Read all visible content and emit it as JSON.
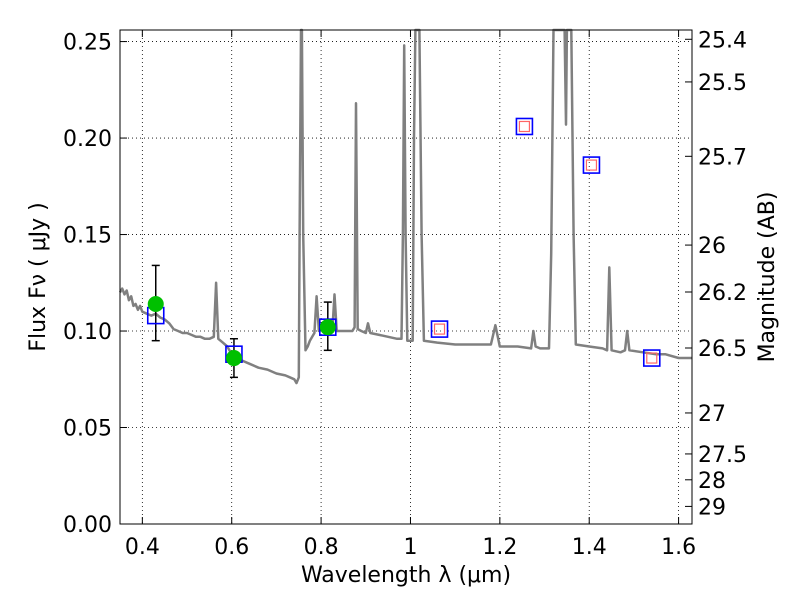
{
  "chart_data": {
    "type": "line",
    "xlabel": "Wavelength  λ (μm)",
    "ylabel": "Flux  Fν  ( μJy )",
    "y2label": "Magnitude (AB)",
    "xlim": [
      0.35,
      1.63
    ],
    "ylim": [
      0.0,
      0.256
    ],
    "grid": true,
    "x_ticks": [
      {
        "value": 0.4,
        "label": "0.4"
      },
      {
        "value": 0.6,
        "label": "0.6"
      },
      {
        "value": 0.8,
        "label": "0.8"
      },
      {
        "value": 1.0,
        "label": "1"
      },
      {
        "value": 1.2,
        "label": "1.2"
      },
      {
        "value": 1.4,
        "label": "1.4"
      },
      {
        "value": 1.6,
        "label": "1.6"
      }
    ],
    "y_ticks": [
      {
        "value": 0.0,
        "label": "0.00"
      },
      {
        "value": 0.05,
        "label": "0.05"
      },
      {
        "value": 0.1,
        "label": "0.10"
      },
      {
        "value": 0.15,
        "label": "0.15"
      },
      {
        "value": 0.2,
        "label": "0.20"
      },
      {
        "value": 0.25,
        "label": "0.25"
      }
    ],
    "y2_ticks": [
      {
        "value": 25.4,
        "label": "25.4"
      },
      {
        "value": 25.5,
        "label": "25.5"
      },
      {
        "value": 25.7,
        "label": "25.7"
      },
      {
        "value": 26.0,
        "label": "26"
      },
      {
        "value": 26.2,
        "label": "26.2"
      },
      {
        "value": 26.5,
        "label": "26.5"
      },
      {
        "value": 27.0,
        "label": "27"
      },
      {
        "value": 27.5,
        "label": "27.5"
      },
      {
        "value": 28.0,
        "label": "28"
      },
      {
        "value": 29.0,
        "label": "29"
      }
    ],
    "model_spectrum": {
      "color": "#808080",
      "points": [
        [
          0.35,
          0.12
        ],
        [
          0.355,
          0.122
        ],
        [
          0.36,
          0.119
        ],
        [
          0.365,
          0.121
        ],
        [
          0.37,
          0.116
        ],
        [
          0.375,
          0.118
        ],
        [
          0.38,
          0.113
        ],
        [
          0.385,
          0.114
        ],
        [
          0.39,
          0.111
        ],
        [
          0.395,
          0.113
        ],
        [
          0.4,
          0.11
        ],
        [
          0.41,
          0.109
        ],
        [
          0.42,
          0.108
        ],
        [
          0.43,
          0.109
        ],
        [
          0.44,
          0.107
        ],
        [
          0.45,
          0.106
        ],
        [
          0.46,
          0.104
        ],
        [
          0.47,
          0.101
        ],
        [
          0.48,
          0.1
        ],
        [
          0.49,
          0.099
        ],
        [
          0.5,
          0.099
        ],
        [
          0.51,
          0.098
        ],
        [
          0.52,
          0.097
        ],
        [
          0.53,
          0.097
        ],
        [
          0.54,
          0.096
        ],
        [
          0.55,
          0.096
        ],
        [
          0.56,
          0.097
        ],
        [
          0.565,
          0.125
        ],
        [
          0.57,
          0.096
        ],
        [
          0.58,
          0.094
        ],
        [
          0.59,
          0.092
        ],
        [
          0.6,
          0.088
        ],
        [
          0.62,
          0.085
        ],
        [
          0.64,
          0.083
        ],
        [
          0.66,
          0.081
        ],
        [
          0.68,
          0.08
        ],
        [
          0.7,
          0.078
        ],
        [
          0.72,
          0.077
        ],
        [
          0.73,
          0.076
        ],
        [
          0.74,
          0.075
        ],
        [
          0.745,
          0.073
        ],
        [
          0.75,
          0.076
        ],
        [
          0.752,
          0.15
        ],
        [
          0.755,
          0.256
        ],
        [
          0.757,
          0.256
        ],
        [
          0.76,
          0.15
        ],
        [
          0.765,
          0.09
        ],
        [
          0.77,
          0.092
        ],
        [
          0.775,
          0.095
        ],
        [
          0.78,
          0.097
        ],
        [
          0.785,
          0.099
        ],
        [
          0.79,
          0.118
        ],
        [
          0.795,
          0.1
        ],
        [
          0.8,
          0.102
        ],
        [
          0.81,
          0.101
        ],
        [
          0.82,
          0.101
        ],
        [
          0.825,
          0.1
        ],
        [
          0.83,
          0.119
        ],
        [
          0.835,
          0.1
        ],
        [
          0.84,
          0.1
        ],
        [
          0.85,
          0.1
        ],
        [
          0.86,
          0.1
        ],
        [
          0.87,
          0.1
        ],
        [
          0.875,
          0.102
        ],
        [
          0.878,
          0.218
        ],
        [
          0.882,
          0.101
        ],
        [
          0.89,
          0.1
        ],
        [
          0.9,
          0.099
        ],
        [
          0.905,
          0.104
        ],
        [
          0.91,
          0.099
        ],
        [
          0.93,
          0.098
        ],
        [
          0.95,
          0.097
        ],
        [
          0.97,
          0.096
        ],
        [
          0.98,
          0.096
        ],
        [
          0.983,
          0.15
        ],
        [
          0.986,
          0.248
        ],
        [
          0.989,
          0.15
        ],
        [
          0.993,
          0.095
        ],
        [
          1.0,
          0.095
        ],
        [
          1.005,
          0.095
        ],
        [
          1.008,
          0.2
        ],
        [
          1.011,
          0.256
        ],
        [
          1.02,
          0.256
        ],
        [
          1.025,
          0.15
        ],
        [
          1.03,
          0.095
        ],
        [
          1.06,
          0.094
        ],
        [
          1.1,
          0.093
        ],
        [
          1.15,
          0.093
        ],
        [
          1.18,
          0.093
        ],
        [
          1.19,
          0.103
        ],
        [
          1.2,
          0.092
        ],
        [
          1.24,
          0.092
        ],
        [
          1.27,
          0.091
        ],
        [
          1.275,
          0.1
        ],
        [
          1.28,
          0.092
        ],
        [
          1.29,
          0.091
        ],
        [
          1.31,
          0.091
        ],
        [
          1.315,
          0.14
        ],
        [
          1.32,
          0.256
        ],
        [
          1.345,
          0.256
        ],
        [
          1.348,
          0.207
        ],
        [
          1.35,
          0.256
        ],
        [
          1.36,
          0.256
        ],
        [
          1.365,
          0.15
        ],
        [
          1.37,
          0.093
        ],
        [
          1.4,
          0.092
        ],
        [
          1.43,
          0.091
        ],
        [
          1.44,
          0.09
        ],
        [
          1.445,
          0.133
        ],
        [
          1.45,
          0.09
        ],
        [
          1.47,
          0.089
        ],
        [
          1.48,
          0.09
        ],
        [
          1.485,
          0.1
        ],
        [
          1.49,
          0.09
        ],
        [
          1.52,
          0.089
        ],
        [
          1.55,
          0.088
        ],
        [
          1.57,
          0.088
        ],
        [
          1.6,
          0.086
        ],
        [
          1.63,
          0.086
        ]
      ]
    },
    "observed_photometry": {
      "marker": "circle",
      "color": "#00c000",
      "points": [
        {
          "x": 0.43,
          "y": 0.114,
          "yerr_low": 0.095,
          "yerr_high": 0.134
        },
        {
          "x": 0.605,
          "y": 0.086,
          "yerr_low": 0.076,
          "yerr_high": 0.096
        },
        {
          "x": 0.815,
          "y": 0.102,
          "yerr_low": 0.09,
          "yerr_high": 0.115
        }
      ]
    },
    "model_photometry": {
      "marker": "square",
      "color": "#0000ff",
      "points": [
        {
          "x": 0.43,
          "y": 0.108
        },
        {
          "x": 0.605,
          "y": 0.088
        },
        {
          "x": 0.815,
          "y": 0.102
        },
        {
          "x": 1.065,
          "y": 0.101
        },
        {
          "x": 1.255,
          "y": 0.206
        },
        {
          "x": 1.405,
          "y": 0.186
        },
        {
          "x": 1.54,
          "y": 0.086
        }
      ]
    },
    "upper_limit_markers": {
      "marker": "square",
      "color": "#ff6666",
      "points": [
        {
          "x": 1.065,
          "y": 0.101
        },
        {
          "x": 1.255,
          "y": 0.206
        },
        {
          "x": 1.405,
          "y": 0.186
        },
        {
          "x": 1.54,
          "y": 0.086
        }
      ]
    }
  }
}
